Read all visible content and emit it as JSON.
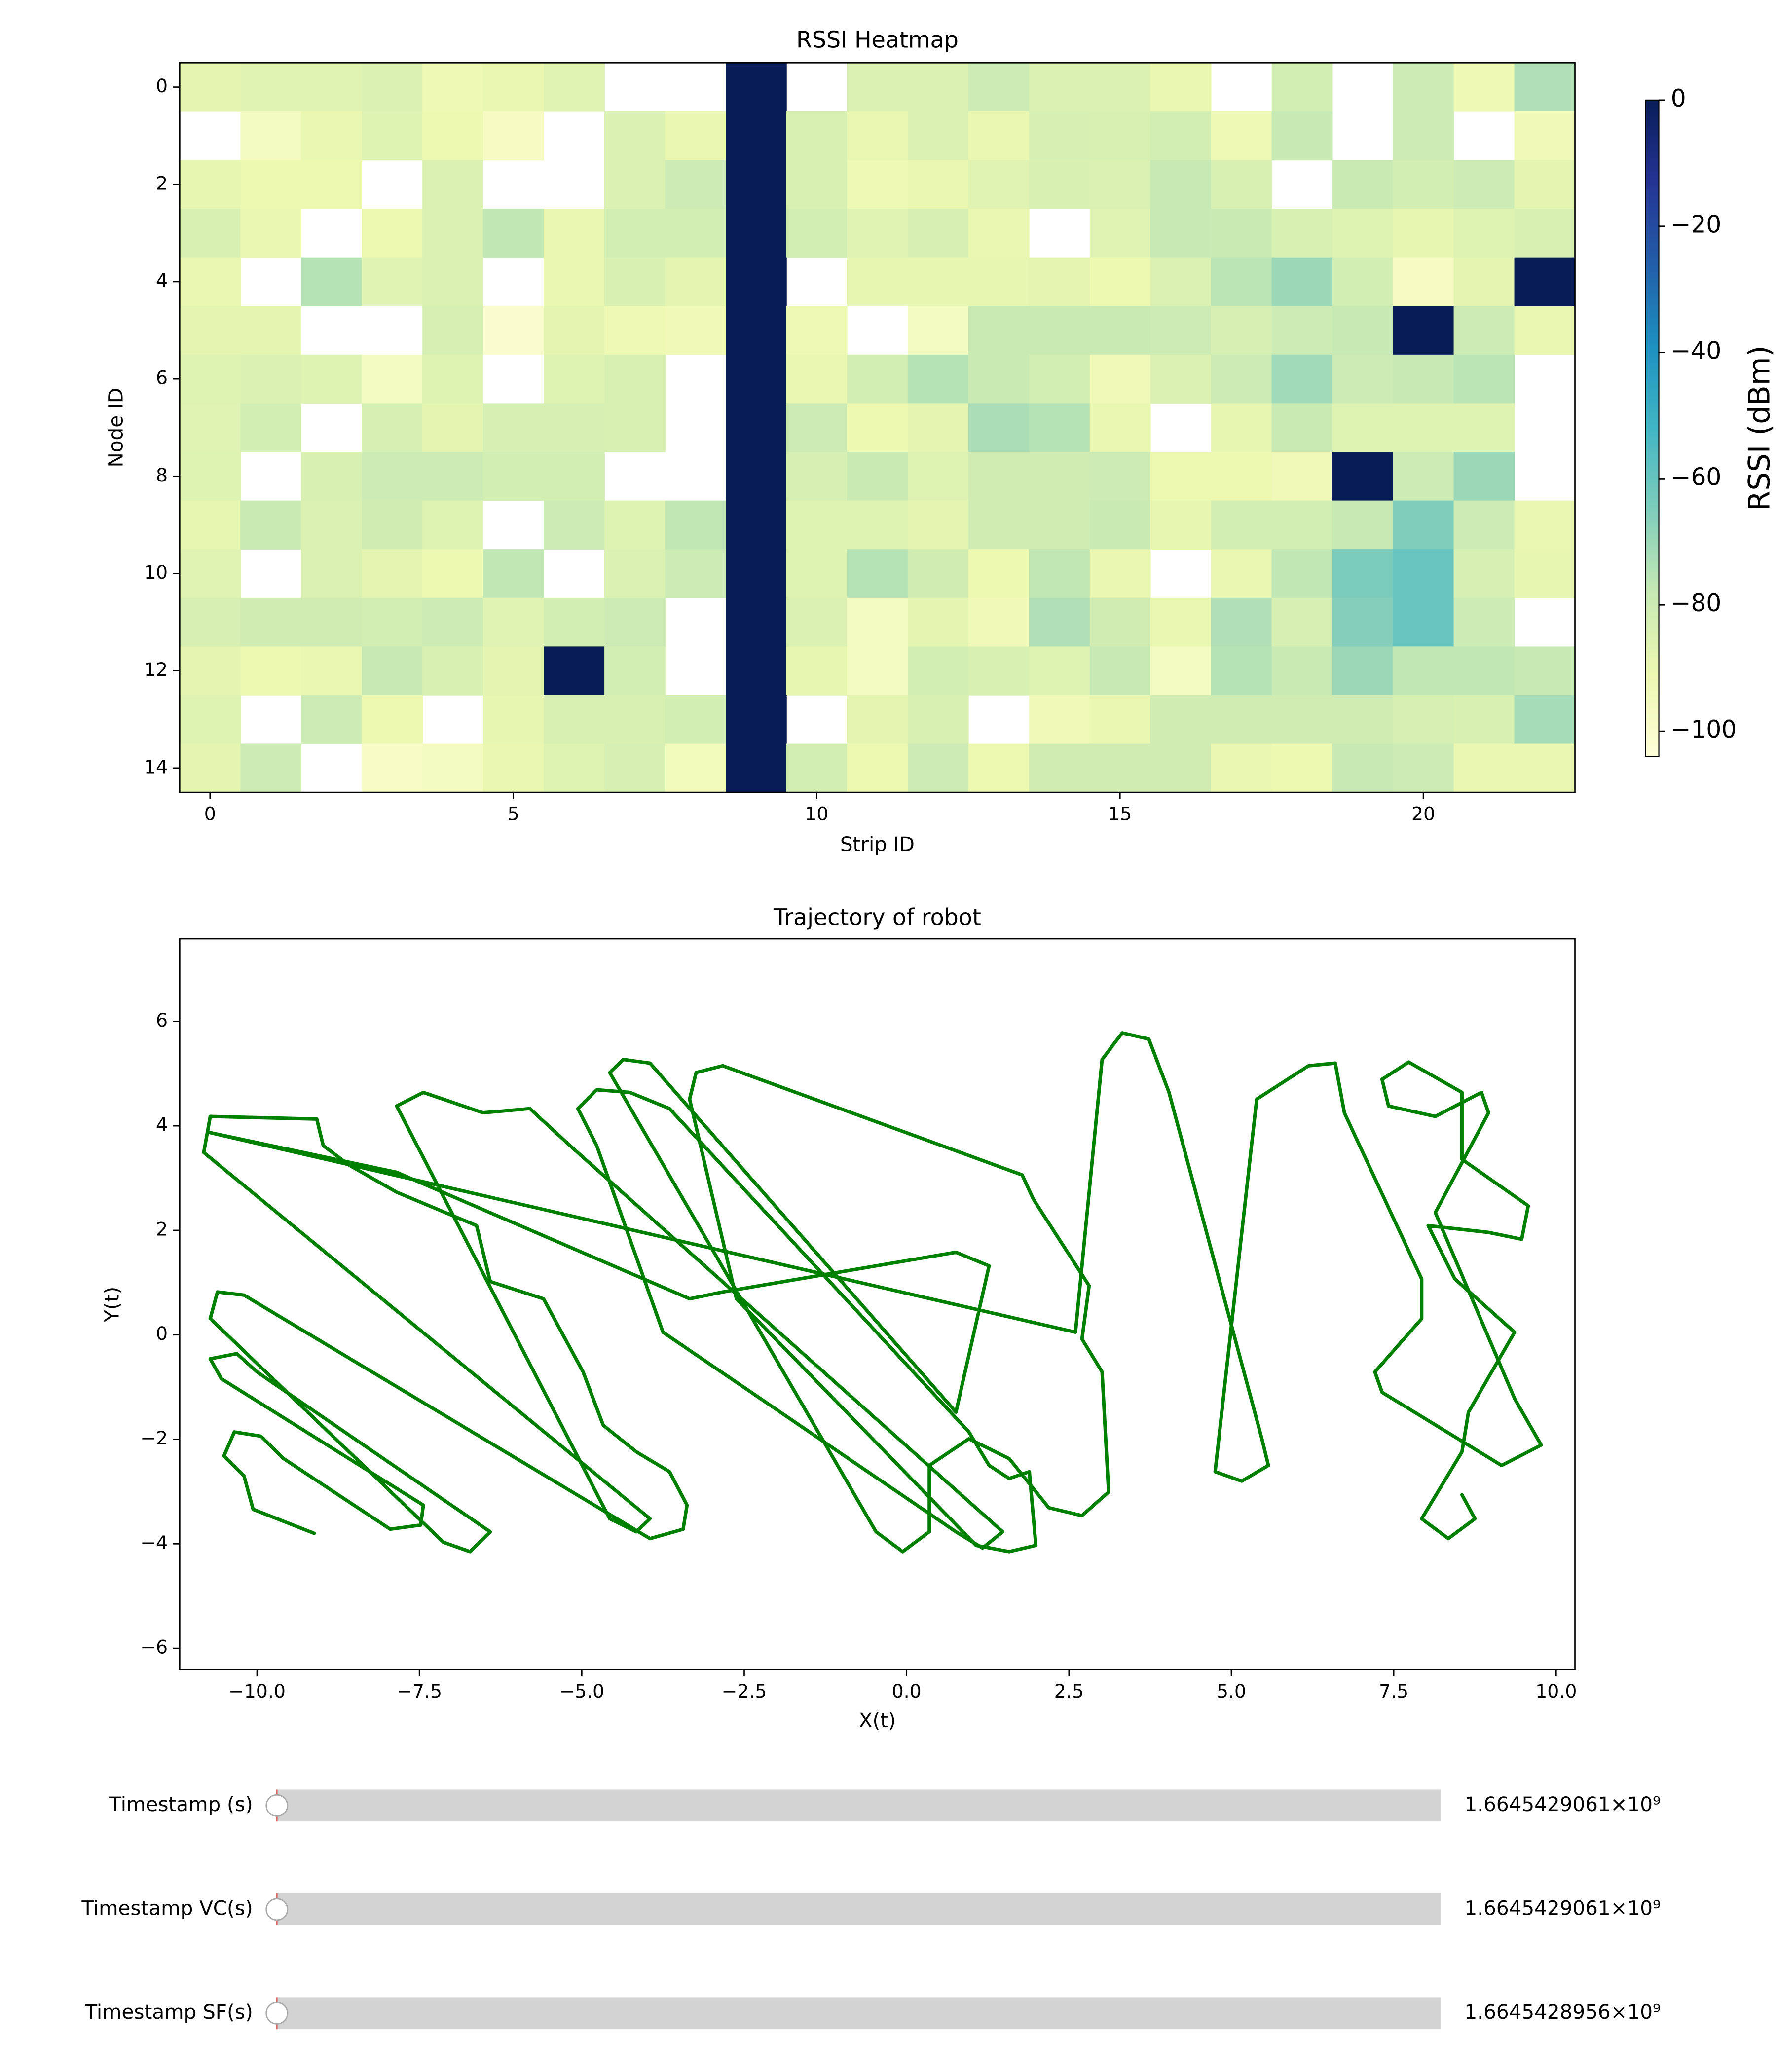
{
  "chart_data": [
    {
      "type": "heatmap",
      "title": "RSSI Heatmap",
      "xlabel": "Strip ID",
      "ylabel": "Node ID",
      "colormap": "YlGnBu",
      "colorbar_label": "RSSI (dBm)",
      "clim": [
        -104,
        0
      ],
      "cticks": [
        0,
        {
          "value": -20,
          "label": "−20"
        },
        {
          "value": -40,
          "label": "−40"
        },
        {
          "value": -60,
          "label": "−60"
        },
        {
          "value": -80,
          "label": "−80"
        },
        {
          "value": -100,
          "label": "−100"
        }
      ],
      "xlim": [
        -0.5,
        22.5
      ],
      "xticks": [
        0,
        5,
        10,
        15,
        20
      ],
      "ylim": [
        14.5,
        -0.5
      ],
      "yticks": [
        0,
        2,
        4,
        6,
        8,
        10,
        12,
        14
      ],
      "values": [
        [
          -88,
          -87,
          -87,
          -85,
          -92,
          -90,
          -87,
          null,
          null,
          0,
          null,
          -85,
          -85,
          -80,
          -85,
          -85,
          -90,
          null,
          -82,
          null,
          -80,
          -92,
          -74
        ],
        [
          null,
          -96,
          -90,
          -86,
          -91,
          -97,
          null,
          -85,
          -90,
          0,
          -84,
          -90,
          -85,
          -90,
          -83,
          -84,
          -82,
          -92,
          -78,
          null,
          -80,
          null,
          -93
        ],
        [
          -89,
          -91,
          -91,
          null,
          -85,
          null,
          null,
          -85,
          -80,
          0,
          -84,
          -92,
          -90,
          -87,
          -84,
          -85,
          -78,
          -84,
          null,
          -79,
          -82,
          -80,
          -88
        ],
        [
          -84,
          -90,
          null,
          -91,
          -85,
          -77,
          -90,
          -82,
          -82,
          0,
          -82,
          -87,
          -83,
          -90,
          null,
          -87,
          -78,
          -79,
          -84,
          -86,
          -89,
          -86,
          -84
        ],
        [
          -90,
          null,
          -75,
          -87,
          -85,
          null,
          -90,
          -84,
          -88,
          0,
          null,
          -89,
          -89,
          -89,
          -88,
          -91,
          -85,
          -76,
          -70,
          -82,
          -97,
          -88,
          0
        ],
        [
          -88,
          -88,
          null,
          null,
          -83,
          -100,
          -88,
          -92,
          -93,
          0,
          -92,
          null,
          -96,
          -79,
          -79,
          -79,
          -80,
          -83,
          -80,
          -78,
          0,
          -80,
          -90
        ],
        [
          -86,
          -85,
          -86,
          -96,
          -86,
          null,
          -86,
          -84,
          null,
          0,
          -90,
          -82,
          -75,
          -79,
          -82,
          -93,
          -85,
          -80,
          -71,
          -80,
          -78,
          -76,
          null
        ],
        [
          -87,
          -82,
          null,
          -83,
          -88,
          -83,
          -83,
          -84,
          null,
          0,
          -80,
          -91,
          -88,
          -73,
          -75,
          -90,
          null,
          -89,
          -79,
          -86,
          -86,
          -86,
          null
        ],
        [
          -86,
          null,
          -84,
          -80,
          -80,
          -82,
          -82,
          null,
          null,
          0,
          -83,
          -79,
          -86,
          -81,
          -81,
          -80,
          -91,
          -91,
          -93,
          0,
          -80,
          -70,
          null
        ],
        [
          -89,
          -79,
          -85,
          -81,
          -86,
          null,
          -80,
          -86,
          -77,
          0,
          -86,
          -86,
          -88,
          -81,
          -81,
          -79,
          -89,
          -82,
          -82,
          -78,
          -65,
          -80,
          -90
        ],
        [
          -87,
          null,
          -85,
          -88,
          -91,
          -77,
          null,
          -85,
          -80,
          0,
          -86,
          -75,
          -81,
          -91,
          -77,
          -90,
          null,
          -90,
          -77,
          -64,
          -60,
          -83,
          -89
        ],
        [
          -83,
          -81,
          -81,
          -82,
          -80,
          -87,
          -82,
          -80,
          null,
          0,
          -85,
          -96,
          -88,
          -93,
          -74,
          -81,
          -90,
          -74,
          -83,
          -66,
          -60,
          -80,
          null
        ],
        [
          -88,
          -91,
          -90,
          -78,
          -84,
          -88,
          0,
          -82,
          null,
          0,
          -89,
          -96,
          -82,
          -84,
          -86,
          -78,
          -96,
          -75,
          -79,
          -70,
          -77,
          -77,
          -78
        ],
        [
          -86,
          null,
          -80,
          -91,
          null,
          -89,
          -84,
          -84,
          -82,
          0,
          null,
          -88,
          -84,
          null,
          -93,
          -90,
          -81,
          -81,
          -81,
          -81,
          -83,
          -84,
          -72
        ],
        [
          -88,
          -80,
          null,
          -98,
          -96,
          -90,
          -86,
          -83,
          -94,
          0,
          -82,
          -91,
          -80,
          -91,
          -81,
          -81,
          -81,
          -90,
          -91,
          -78,
          -80,
          -90,
          -90
        ]
      ]
    },
    {
      "type": "line",
      "title": "Trajectory of robot",
      "xlabel": "X(t)",
      "ylabel": "Y(t)",
      "color": "#008000",
      "xlim": [
        -11.19,
        10.29
      ],
      "xticks": [
        {
          "value": -10,
          "label": "−10.0"
        },
        {
          "value": -7.5,
          "label": "−7.5"
        },
        {
          "value": -5,
          "label": "−5.0"
        },
        {
          "value": -2.5,
          "label": "−2.5"
        },
        {
          "value": 0,
          "label": "0.0"
        },
        2.5,
        {
          "value": 5,
          "label": "5.0"
        },
        7.5,
        {
          "value": 10,
          "label": "10.0"
        }
      ],
      "ylim": [
        -6.41,
        7.58
      ],
      "yticks": [
        {
          "value": -6,
          "label": "−6"
        },
        {
          "value": -4,
          "label": "−4"
        },
        {
          "value": -2,
          "label": "−2"
        },
        0,
        2,
        4,
        6
      ],
      "x": [
        -9.12,
        -10.06,
        -10.2,
        -10.51,
        -10.35,
        -9.94,
        -9.59,
        -7.95,
        -7.48,
        -7.44,
        -10.55,
        -10.72,
        -10.31,
        -10.0,
        -6.41,
        -6.72,
        -7.13,
        -10.72,
        -10.61,
        -10.2,
        -3.95,
        -3.44,
        -3.38,
        -3.65,
        -4.16,
        -4.67,
        -4.98,
        -5.59,
        -6.41,
        -6.62,
        -7.85,
        -8.57,
        -8.98,
        -9.08,
        -10.72,
        -10.82,
        -3.95,
        -4.16,
        -4.57,
        -7.85,
        -7.44,
        -6.52,
        -5.8,
        -5.18,
        1.48,
        1.17,
        0.76,
        -3.75,
        -4.77,
        -5.06,
        -4.77,
        -4.26,
        -3.65,
        0.96,
        1.27,
        1.58,
        1.89,
        1.99,
        1.58,
        1.07,
        -2.62,
        -3.34,
        -3.24,
        -2.83,
        1.78,
        1.95,
        2.81,
        2.7,
        3.01,
        3.11,
        2.7,
        2.19,
        1.58,
        0.96,
        0.35,
        0.35,
        -0.06,
        -0.47,
        -4.57,
        -4.36,
        -3.95,
        0.76,
        1.27,
        0.76,
        -2.83,
        -3.34,
        -7.85,
        -10.72,
        2.6,
        3.01,
        3.32,
        3.73,
        4.04,
        5.47,
        5.57,
        5.16,
        4.75,
        5.39,
        6.19,
        6.6,
        6.74,
        7.93,
        7.93,
        7.21,
        7.32,
        9.16,
        9.77,
        9.36,
        8.14,
        8.96,
        8.85,
        8.14,
        7.42,
        7.32,
        7.73,
        8.55,
        8.55,
        9.57,
        9.47,
        8.96,
        8.03,
        8.44,
        9.36,
        8.65,
        8.55,
        7.93,
        8.34,
        8.75,
        8.55
      ],
      "values": [
        -3.8,
        -3.34,
        -2.7,
        -2.32,
        -1.86,
        -1.94,
        -2.37,
        -3.72,
        -3.64,
        -3.26,
        -0.84,
        -0.46,
        -0.36,
        -0.71,
        -3.77,
        -4.15,
        -3.97,
        0.31,
        0.82,
        0.76,
        -3.9,
        -3.72,
        -3.26,
        -2.62,
        -2.24,
        -1.73,
        -0.71,
        0.69,
        1.02,
        2.09,
        2.73,
        3.24,
        3.62,
        4.13,
        4.18,
        3.49,
        -3.52,
        -3.77,
        -3.52,
        4.38,
        4.64,
        4.25,
        4.33,
        3.62,
        -3.77,
        -4.08,
        -3.77,
        0.05,
        3.62,
        4.33,
        4.69,
        4.64,
        4.33,
        -1.86,
        -2.5,
        -2.75,
        -2.62,
        -4.03,
        -4.15,
        -4.03,
        0.69,
        4.51,
        5.02,
        5.15,
        3.06,
        2.6,
        0.94,
        -0.08,
        -0.71,
        -3.01,
        -3.46,
        -3.31,
        -2.37,
        -1.99,
        -2.5,
        -3.77,
        -4.15,
        -3.77,
        5.02,
        5.27,
        5.2,
        -1.48,
        1.32,
        1.58,
        0.82,
        0.69,
        3.11,
        3.87,
        0.05,
        5.27,
        5.78,
        5.66,
        4.64,
        -1.99,
        -2.5,
        -2.8,
        -2.62,
        4.51,
        5.15,
        5.2,
        4.25,
        1.07,
        0.31,
        -0.71,
        -1.1,
        -2.5,
        -2.11,
        -1.22,
        2.34,
        4.25,
        4.64,
        4.18,
        4.38,
        4.89,
        5.22,
        4.64,
        3.36,
        2.47,
        1.83,
        1.96,
        2.09,
        1.07,
        0.05,
        -1.48,
        -2.24,
        -3.52,
        -3.9,
        -3.52,
        -3.06
      ]
    }
  ],
  "sliders": [
    {
      "label": "Timestamp (s)",
      "value_label": "1.6645429061×10⁹"
    },
    {
      "label": "Timestamp VC(s)",
      "value_label": "1.6645429061×10⁹"
    },
    {
      "label": "Timestamp SF(s)",
      "value_label": "1.6645428956×10⁹"
    }
  ]
}
